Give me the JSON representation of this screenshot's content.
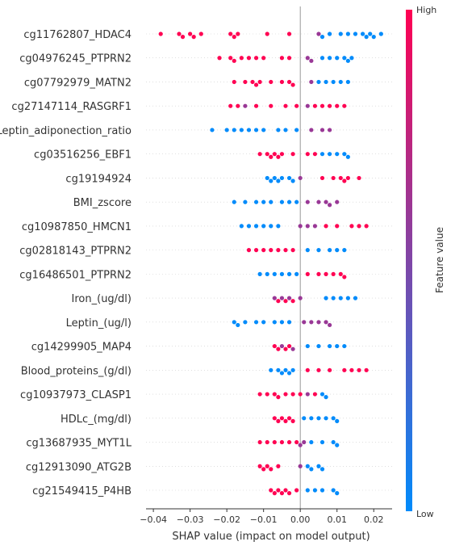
{
  "chart_data": {
    "type": "beeswarm",
    "xlabel": "SHAP value (impact on model output)",
    "colorbar_label": "Feature value",
    "colorbar_high": "High",
    "colorbar_low": "Low",
    "colormap": [
      "#008bfb",
      "#ff0052"
    ],
    "xlim": [
      -0.042,
      0.025
    ],
    "xticks": [
      {
        "value": -0.04,
        "label": "−0.04"
      },
      {
        "value": -0.03,
        "label": "−0.03"
      },
      {
        "value": -0.02,
        "label": "−0.02"
      },
      {
        "value": -0.01,
        "label": "−0.01"
      },
      {
        "value": 0,
        "label": "0.00"
      },
      0.01,
      0.02
    ],
    "series": [
      {
        "name": "cg11762807_HDAC4",
        "values": [
          -0.038,
          -0.033,
          -0.032,
          -0.03,
          -0.029,
          -0.027,
          -0.019,
          -0.018,
          -0.017,
          -0.009,
          -0.003,
          0.005,
          0.006,
          0.008,
          0.011,
          0.013,
          0.015,
          0.017,
          0.018,
          0.019,
          0.02,
          0.022
        ],
        "feature_values": [
          1,
          1,
          1,
          1,
          1,
          1,
          1,
          1,
          1,
          1,
          1,
          0.6,
          0,
          0,
          0,
          0,
          0,
          0,
          0,
          0,
          0,
          0
        ]
      },
      {
        "name": "cg04976245_PTPRN2",
        "values": [
          -0.022,
          -0.019,
          -0.018,
          -0.016,
          -0.014,
          -0.012,
          -0.01,
          -0.005,
          -0.003,
          0.002,
          0.003,
          0.006,
          0.008,
          0.01,
          0.012,
          0.013,
          0.014
        ],
        "feature_values": [
          1,
          1,
          1,
          1,
          1,
          1,
          1,
          1,
          1,
          0.6,
          0.6,
          0,
          0,
          0,
          0,
          0,
          0
        ]
      },
      {
        "name": "cg07792979_MATN2",
        "values": [
          -0.018,
          -0.015,
          -0.013,
          -0.012,
          -0.011,
          -0.008,
          -0.005,
          -0.003,
          -0.002,
          0.003,
          0.005,
          0.007,
          0.009,
          0.011,
          0.013
        ],
        "feature_values": [
          1,
          1,
          1,
          1,
          1,
          1,
          1,
          1,
          1,
          0.6,
          0,
          0,
          0,
          0,
          0
        ]
      },
      {
        "name": "cg27147114_RASGRF1",
        "values": [
          -0.019,
          -0.017,
          -0.015,
          -0.012,
          -0.008,
          -0.004,
          -0.001,
          0.002,
          0.004,
          0.006,
          0.008,
          0.01,
          0.012
        ],
        "feature_values": [
          1,
          1,
          0.6,
          1,
          1,
          1,
          1,
          0.6,
          1,
          1,
          1,
          1,
          1
        ]
      },
      {
        "name": "Leptin_adiponection_ratio",
        "values": [
          -0.024,
          -0.02,
          -0.018,
          -0.016,
          -0.014,
          -0.012,
          -0.01,
          -0.006,
          -0.004,
          -0.001,
          0.003,
          0.006,
          0.008
        ],
        "feature_values": [
          0,
          0,
          0,
          0,
          0,
          0,
          0,
          0,
          0,
          0,
          0.6,
          0.6,
          0.6
        ]
      },
      {
        "name": "cg03516256_EBF1",
        "values": [
          -0.011,
          -0.009,
          -0.008,
          -0.007,
          -0.006,
          -0.005,
          -0.002,
          0.002,
          0.004,
          0.006,
          0.008,
          0.01,
          0.012,
          0.013
        ],
        "feature_values": [
          1,
          1,
          1,
          1,
          1,
          1,
          1,
          1,
          1,
          0,
          0,
          0,
          0,
          0
        ]
      },
      {
        "name": "cg19194924",
        "values": [
          -0.009,
          -0.008,
          -0.007,
          -0.006,
          -0.005,
          -0.003,
          -0.002,
          0,
          0.006,
          0.009,
          0.011,
          0.012,
          0.013,
          0.016
        ],
        "feature_values": [
          0,
          0,
          0,
          0,
          0,
          0,
          0,
          0.6,
          1,
          1,
          1,
          1,
          1,
          1
        ]
      },
      {
        "name": "BMI_zscore",
        "values": [
          -0.018,
          -0.015,
          -0.012,
          -0.01,
          -0.008,
          -0.005,
          -0.003,
          -0.001,
          0.002,
          0.005,
          0.007,
          0.008,
          0.01
        ],
        "feature_values": [
          0,
          0,
          0,
          0,
          0,
          0,
          0,
          0,
          0.6,
          0.6,
          0.6,
          0.6,
          0.6
        ]
      },
      {
        "name": "cg10987850_HMCN1",
        "values": [
          -0.016,
          -0.014,
          -0.012,
          -0.01,
          -0.008,
          -0.006,
          0,
          0.002,
          0.004,
          0.007,
          0.01,
          0.014,
          0.016,
          0.018
        ],
        "feature_values": [
          0,
          0,
          0,
          0,
          0,
          0,
          0.6,
          0.6,
          0.6,
          1,
          1,
          1,
          1,
          1
        ]
      },
      {
        "name": "cg02818143_PTPRN2",
        "values": [
          -0.014,
          -0.012,
          -0.01,
          -0.008,
          -0.006,
          -0.004,
          -0.002,
          0.002,
          0.005,
          0.008,
          0.01,
          0.012
        ],
        "feature_values": [
          1,
          1,
          1,
          1,
          1,
          1,
          1,
          0,
          0,
          0,
          0,
          0
        ]
      },
      {
        "name": "cg16486501_PTPRN2",
        "values": [
          -0.011,
          -0.009,
          -0.007,
          -0.005,
          -0.003,
          -0.001,
          0.002,
          0.005,
          0.007,
          0.009,
          0.011,
          0.012
        ],
        "feature_values": [
          0,
          0,
          0,
          0,
          0,
          0,
          1,
          1,
          1,
          1,
          1,
          1
        ]
      },
      {
        "name": "Iron_(ug/dl)",
        "values": [
          -0.007,
          -0.006,
          -0.005,
          -0.004,
          -0.003,
          -0.002,
          0,
          0.007,
          0.009,
          0.011,
          0.013,
          0.015
        ],
        "feature_values": [
          0.6,
          1,
          0.6,
          1,
          0.6,
          1,
          0.6,
          0,
          0,
          0,
          0,
          0
        ]
      },
      {
        "name": "Leptin_(ug/l)",
        "values": [
          -0.018,
          -0.017,
          -0.015,
          -0.012,
          -0.01,
          -0.007,
          -0.005,
          -0.003,
          0.001,
          0.003,
          0.005,
          0.007,
          0.008
        ],
        "feature_values": [
          0,
          0,
          0,
          0,
          0,
          0,
          0,
          0,
          0.6,
          0.6,
          0.6,
          0.6,
          0.6
        ]
      },
      {
        "name": "cg14299905_MAP4",
        "values": [
          -0.007,
          -0.006,
          -0.005,
          -0.004,
          -0.003,
          -0.002,
          0.002,
          0.005,
          0.008,
          0.01,
          0.012
        ],
        "feature_values": [
          1,
          1,
          0.6,
          1,
          1,
          0.6,
          0,
          0,
          0,
          0,
          0
        ]
      },
      {
        "name": "Blood_proteins_(g/dl)",
        "values": [
          -0.008,
          -0.006,
          -0.005,
          -0.004,
          -0.003,
          -0.002,
          0.002,
          0.005,
          0.008,
          0.012,
          0.014,
          0.016,
          0.018
        ],
        "feature_values": [
          0,
          0,
          0,
          0,
          0,
          0,
          1,
          1,
          1,
          1,
          1,
          1,
          1
        ]
      },
      {
        "name": "cg10937973_CLASP1",
        "values": [
          -0.011,
          -0.009,
          -0.007,
          -0.006,
          -0.004,
          -0.002,
          0,
          0.002,
          0.004,
          0.006,
          0.007
        ],
        "feature_values": [
          1,
          1,
          1,
          1,
          1,
          1,
          1,
          0.6,
          1,
          0,
          0
        ]
      },
      {
        "name": "HDLc_(mg/dl)",
        "values": [
          -0.007,
          -0.006,
          -0.005,
          -0.004,
          -0.003,
          -0.002,
          0.001,
          0.003,
          0.005,
          0.007,
          0.009,
          0.01
        ],
        "feature_values": [
          1,
          1,
          1,
          1,
          1,
          1,
          0,
          0,
          0,
          0,
          0,
          0
        ]
      },
      {
        "name": "cg13687935_MYT1L",
        "values": [
          -0.011,
          -0.009,
          -0.007,
          -0.005,
          -0.003,
          -0.001,
          0,
          0.001,
          0.003,
          0.006,
          0.009,
          0.01
        ],
        "feature_values": [
          1,
          1,
          1,
          1,
          1,
          1,
          0.6,
          0.6,
          0,
          0,
          0,
          0
        ]
      },
      {
        "name": "cg12913090_ATG2B",
        "values": [
          -0.011,
          -0.01,
          -0.009,
          -0.008,
          -0.006,
          0,
          0.002,
          0.003,
          0.005,
          0.006
        ],
        "feature_values": [
          1,
          1,
          1,
          1,
          1,
          0.6,
          0,
          0,
          0,
          0
        ]
      },
      {
        "name": "cg21549415_P4HB",
        "values": [
          -0.008,
          -0.007,
          -0.006,
          -0.005,
          -0.004,
          -0.003,
          -0.001,
          0.002,
          0.004,
          0.006,
          0.009,
          0.01
        ],
        "feature_values": [
          1,
          1,
          1,
          1,
          1,
          1,
          1,
          0,
          0,
          0,
          0,
          0
        ]
      }
    ]
  }
}
